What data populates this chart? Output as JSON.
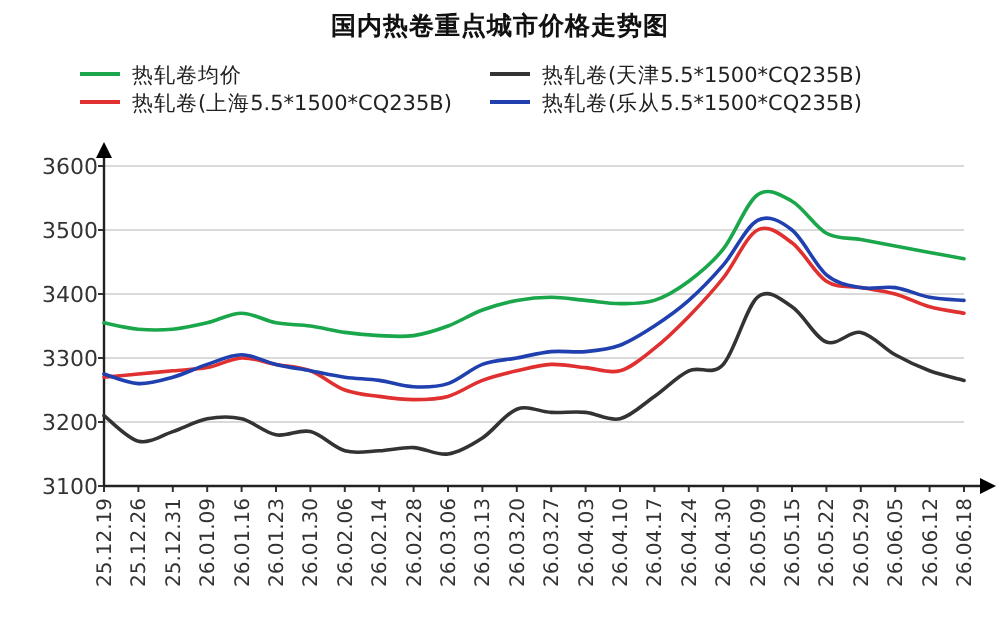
{
  "chart_data": {
    "type": "line",
    "title": "国内热卷重点城市价格走势图",
    "categories": [
      "25.12.19",
      "25.12.26",
      "25.12.31",
      "26.01.09",
      "26.01.16",
      "26.01.23",
      "26.01.30",
      "26.02.06",
      "26.02.14",
      "26.02.28",
      "26.03.06",
      "26.03.13",
      "26.03.20",
      "26.03.27",
      "26.04.03",
      "26.04.10",
      "26.04.17",
      "26.04.24",
      "26.04.30",
      "26.05.09",
      "26.05.15",
      "26.05.22",
      "26.05.29",
      "26.06.05",
      "26.06.12",
      "26.06.18"
    ],
    "series": [
      {
        "name": "热轧卷均价",
        "color": "#1aa64a",
        "values": [
          3355,
          3345,
          3345,
          3355,
          3370,
          3355,
          3350,
          3340,
          3335,
          3335,
          3350,
          3375,
          3390,
          3395,
          3390,
          3385,
          3390,
          3420,
          3470,
          3555,
          3545,
          3495,
          3485,
          3475,
          3465,
          3455
        ]
      },
      {
        "name": "热轧卷(天津5.5*1500*CQ235B)",
        "color": "#333333",
        "values": [
          3210,
          3170,
          3185,
          3205,
          3205,
          3180,
          3185,
          3155,
          3155,
          3160,
          3150,
          3175,
          3220,
          3215,
          3215,
          3205,
          3240,
          3280,
          3290,
          3395,
          3380,
          3325,
          3340,
          3305,
          3280,
          3265
        ]
      },
      {
        "name": "热轧卷(上海5.5*1500*CQ235B)",
        "color": "#e03030",
        "values": [
          3270,
          3275,
          3280,
          3285,
          3300,
          3290,
          3280,
          3250,
          3240,
          3235,
          3240,
          3265,
          3280,
          3290,
          3285,
          3280,
          3315,
          3365,
          3425,
          3500,
          3480,
          3420,
          3410,
          3400,
          3380,
          3370
        ]
      },
      {
        "name": "热轧卷(乐从5.5*1500*CQ235B)",
        "color": "#2040b0",
        "values": [
          3275,
          3260,
          3270,
          3290,
          3305,
          3290,
          3280,
          3270,
          3265,
          3255,
          3260,
          3290,
          3300,
          3310,
          3310,
          3320,
          3350,
          3390,
          3445,
          3515,
          3500,
          3430,
          3410,
          3410,
          3395,
          3390
        ]
      }
    ],
    "ylim": [
      3100,
      3600
    ],
    "yticks": [
      3100,
      3200,
      3300,
      3400,
      3500,
      3600
    ],
    "grid": "y",
    "legend": "top",
    "marker": "none",
    "line_style": "solid"
  }
}
